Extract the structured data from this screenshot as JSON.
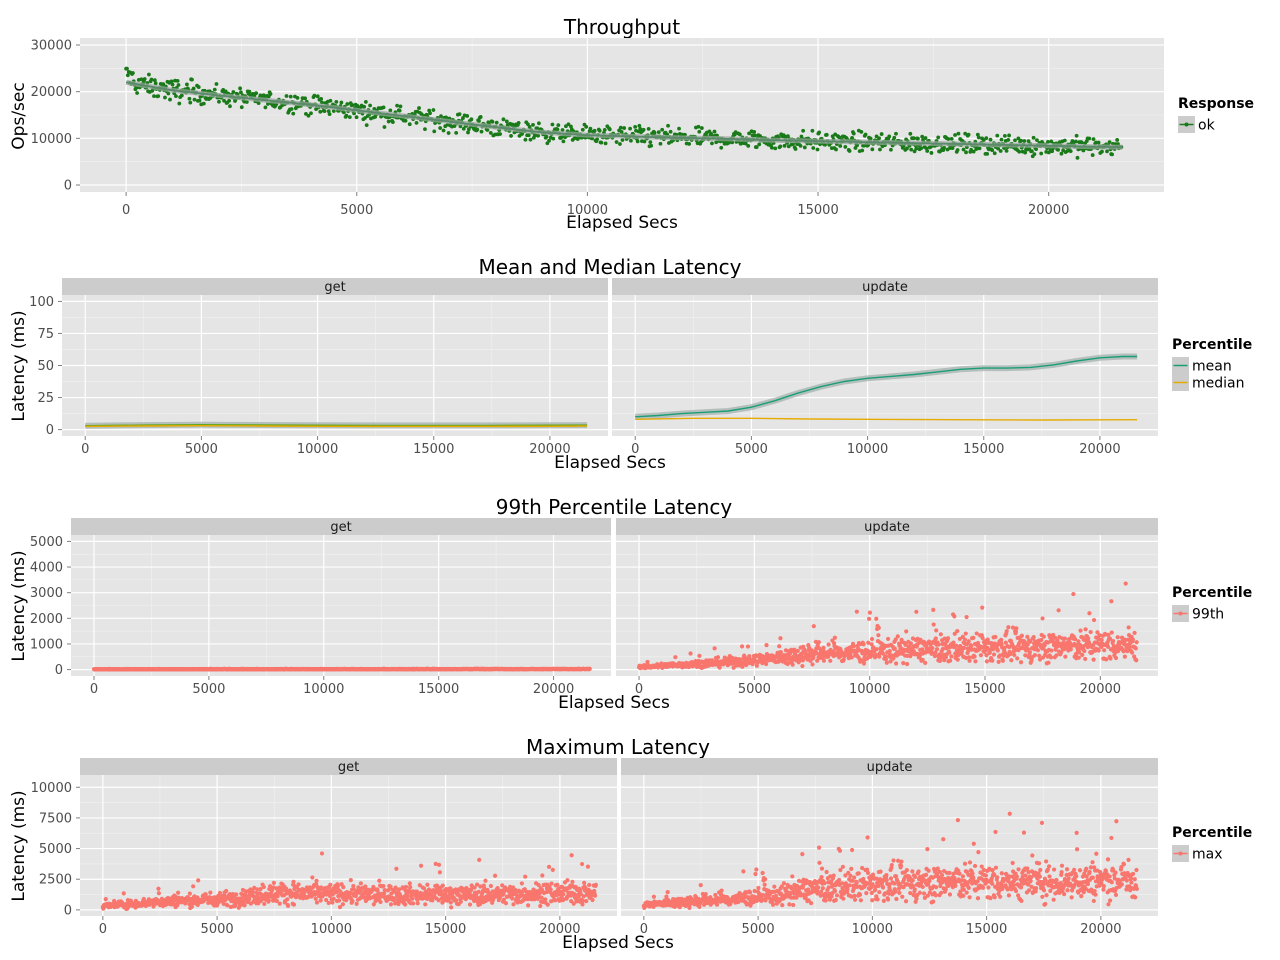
{
  "chart_data": [
    {
      "type": "scatter",
      "title": "Throughput",
      "xlabel": "Elapsed Secs",
      "ylabel": "Ops/sec",
      "xlim": [
        -1000,
        22500
      ],
      "ylim": [
        -1500,
        31500
      ],
      "xticks": [
        0,
        5000,
        10000,
        15000,
        20000
      ],
      "yticks": [
        0,
        10000,
        20000,
        30000
      ],
      "xtick_labels": [
        "0",
        "5000",
        "10000",
        "15000",
        "20000"
      ],
      "ytick_labels": [
        "0",
        "10000",
        "20000",
        "30000"
      ],
      "grid": true,
      "legend": {
        "position": "right",
        "title": "Response",
        "entries": [
          "ok"
        ]
      },
      "colors": {
        "ok": "#1a7a1a",
        "smooth": "#5a8a6a"
      },
      "series": [
        {
          "name": "ok",
          "trend": {
            "x": [
              0,
              1000,
              2000,
              3000,
              4000,
              5000,
              6000,
              7000,
              8000,
              9000,
              10000,
              11000,
              12000,
              13000,
              14000,
              15000,
              16000,
              17000,
              18000,
              19000,
              20000,
              21000,
              21600
            ],
            "y": [
              22000,
              20300,
              19200,
              18200,
              17200,
              16000,
              14800,
              13600,
              12400,
              11300,
              10700,
              10400,
              10100,
              9900,
              9600,
              9400,
              9200,
              9000,
              8800,
              8600,
              8400,
              8200,
              8100
            ]
          }
        }
      ],
      "smooth": {
        "x": [
          0,
          1000,
          2000,
          3000,
          4000,
          5000,
          6000,
          7000,
          8000,
          9000,
          10000,
          11000,
          12000,
          13000,
          14000,
          15000,
          16000,
          17000,
          18000,
          19000,
          20000,
          21000,
          21600
        ],
        "y": [
          22000,
          20300,
          19200,
          18200,
          17200,
          16000,
          14800,
          13600,
          12400,
          11300,
          10700,
          10400,
          10100,
          9900,
          9600,
          9400,
          9200,
          9000,
          8800,
          8600,
          8400,
          8200,
          8100
        ]
      }
    },
    {
      "type": "line",
      "title": "Mean and Median Latency",
      "xlabel": "Elapsed Secs",
      "ylabel": "Latency (ms)",
      "xlim": [
        -1000,
        22500
      ],
      "ylim": [
        -5,
        105
      ],
      "xticks": [
        0,
        5000,
        10000,
        15000,
        20000
      ],
      "yticks": [
        0,
        25,
        50,
        75,
        100
      ],
      "xtick_labels": [
        "0",
        "5000",
        "10000",
        "15000",
        "20000"
      ],
      "ytick_labels": [
        "0",
        "25",
        "50",
        "75",
        "100"
      ],
      "grid": true,
      "facets": [
        "get",
        "update"
      ],
      "legend": {
        "position": "right",
        "title": "Percentile",
        "entries": [
          "mean",
          "median"
        ]
      },
      "colors": {
        "mean": "#1b9e77",
        "median": "#e6ab02",
        "get_mean": "#66a61e"
      },
      "series": [
        {
          "facet": "get",
          "name": "mean",
          "x": [
            0,
            2500,
            5000,
            7500,
            10000,
            12500,
            15000,
            17500,
            20000,
            21600
          ],
          "values": [
            3.0,
            3.5,
            3.8,
            3.6,
            3.4,
            3.3,
            3.3,
            3.3,
            3.4,
            3.5
          ]
        },
        {
          "facet": "get",
          "name": "median",
          "x": [
            0,
            2500,
            5000,
            7500,
            10000,
            12500,
            15000,
            17500,
            20000,
            21600
          ],
          "values": [
            2.5,
            2.8,
            3.0,
            2.8,
            2.6,
            2.5,
            2.5,
            2.5,
            2.6,
            2.7
          ]
        },
        {
          "facet": "update",
          "name": "mean",
          "x": [
            0,
            1000,
            2000,
            3000,
            4000,
            5000,
            6000,
            7000,
            8000,
            9000,
            10000,
            11000,
            12000,
            13000,
            14000,
            15000,
            16000,
            17000,
            18000,
            19000,
            20000,
            21000,
            21600
          ],
          "values": [
            10,
            11,
            12.5,
            13.5,
            14.5,
            17.5,
            22.5,
            28.5,
            33.5,
            37.5,
            40,
            41.5,
            43,
            45,
            47,
            48,
            48,
            48.5,
            50.5,
            53.5,
            56,
            57,
            57
          ]
        },
        {
          "facet": "update",
          "name": "median",
          "x": [
            0,
            2500,
            5000,
            7500,
            10000,
            12500,
            15000,
            17500,
            20000,
            21600
          ],
          "values": [
            8.0,
            8.8,
            8.8,
            8.3,
            8.0,
            7.8,
            7.6,
            7.5,
            7.6,
            7.7
          ]
        }
      ]
    },
    {
      "type": "scatter",
      "title": "99th Percentile Latency",
      "xlabel": "Elapsed Secs",
      "ylabel": "Latency (ms)",
      "xlim": [
        -1000,
        22500
      ],
      "ylim": [
        -250,
        5250
      ],
      "xticks": [
        0,
        5000,
        10000,
        15000,
        20000
      ],
      "yticks": [
        0,
        1000,
        2000,
        3000,
        4000,
        5000
      ],
      "xtick_labels": [
        "0",
        "5000",
        "10000",
        "15000",
        "20000"
      ],
      "ytick_labels": [
        "0",
        "1000",
        "2000",
        "3000",
        "4000",
        "5000"
      ],
      "grid": true,
      "facets": [
        "get",
        "update"
      ],
      "legend": {
        "position": "right",
        "title": "Percentile",
        "entries": [
          "99th"
        ]
      },
      "colors": {
        "99th": "#f8766d"
      },
      "series": [
        {
          "facet": "get",
          "name": "99th",
          "trend": {
            "x": [
              0,
              21600
            ],
            "y": [
              5,
              15
            ]
          }
        },
        {
          "facet": "update",
          "name": "99th",
          "trend": {
            "x": [
              0,
              2000,
              4000,
              6000,
              7000,
              8000,
              10000,
              12000,
              14000,
              16000,
              18000,
              20000,
              21600
            ],
            "y": [
              100,
              200,
              300,
              450,
              600,
              650,
              700,
              780,
              820,
              880,
              900,
              950,
              1000
            ]
          }
        }
      ]
    },
    {
      "type": "scatter",
      "title": "Maximum Latency",
      "xlabel": "Elapsed Secs",
      "ylabel": "Latency (ms)",
      "xlim": [
        -1000,
        22500
      ],
      "ylim": [
        -500,
        11000
      ],
      "xticks": [
        0,
        5000,
        10000,
        15000,
        20000
      ],
      "yticks": [
        0,
        2500,
        5000,
        7500,
        10000
      ],
      "xtick_labels": [
        "0",
        "5000",
        "10000",
        "15000",
        "20000"
      ],
      "ytick_labels": [
        "0",
        "2500",
        "5000",
        "7500",
        "10000"
      ],
      "grid": true,
      "facets": [
        "get",
        "update"
      ],
      "legend": {
        "position": "right",
        "title": "Percentile",
        "entries": [
          "max"
        ]
      },
      "colors": {
        "max": "#f8766d"
      },
      "series": [
        {
          "facet": "get",
          "name": "max",
          "trend": {
            "x": [
              0,
              2000,
              4000,
              6000,
              7000,
              8000,
              10000,
              12000,
              14000,
              16000,
              18000,
              20000,
              21600
            ],
            "y": [
              300,
              600,
              800,
              950,
              1300,
              1400,
              1300,
              1250,
              1250,
              1250,
              1300,
              1350,
              1400
            ]
          }
        },
        {
          "facet": "update",
          "name": "max",
          "trend": {
            "x": [
              0,
              2000,
              4000,
              6000,
              7000,
              8000,
              10000,
              12000,
              14000,
              16000,
              18000,
              20000,
              21600
            ],
            "y": [
              400,
              700,
              900,
              1200,
              1600,
              1800,
              2100,
              2200,
              2300,
              2300,
              2300,
              2400,
              2500
            ]
          }
        }
      ]
    }
  ]
}
